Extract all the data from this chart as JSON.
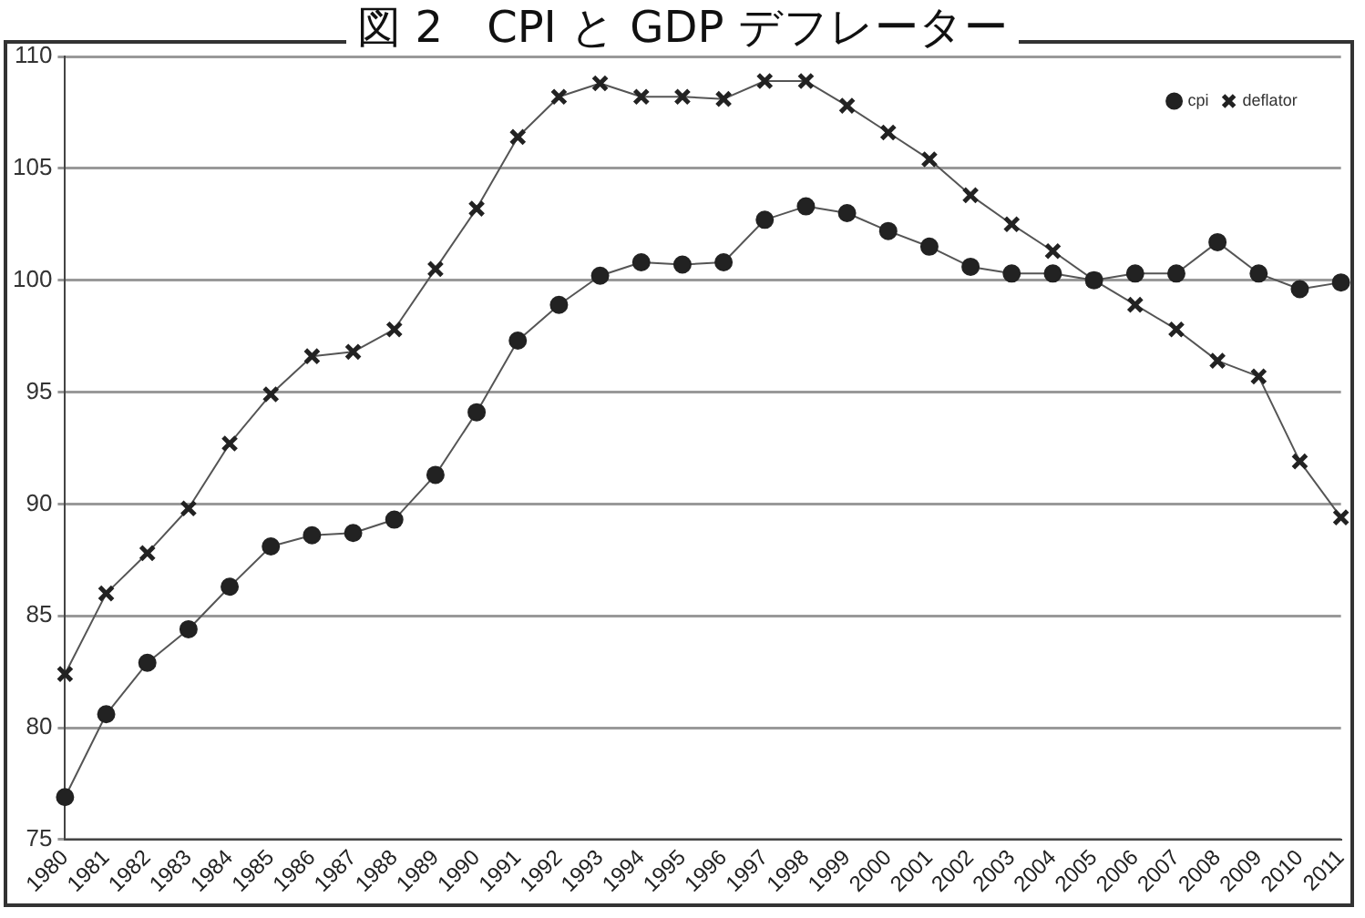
{
  "chart_data": {
    "type": "line",
    "title": "図 2　CPI と GDP デフレーター",
    "categories": [
      "1980",
      "1981",
      "1982",
      "1983",
      "1984",
      "1985",
      "1986",
      "1987",
      "1988",
      "1989",
      "1990",
      "1991",
      "1992",
      "1993",
      "1994",
      "1995",
      "1996",
      "1997",
      "1998",
      "1999",
      "2000",
      "2001",
      "2002",
      "2003",
      "2004",
      "2005",
      "2006",
      "2007",
      "2008",
      "2009",
      "2010",
      "2011"
    ],
    "series": [
      {
        "name": "cpi",
        "color": "#222222",
        "marker": "circle",
        "values": [
          76.9,
          80.6,
          82.9,
          84.4,
          86.3,
          88.1,
          88.6,
          88.7,
          89.3,
          91.3,
          94.1,
          97.3,
          98.9,
          100.2,
          100.8,
          100.7,
          100.8,
          102.7,
          103.3,
          103.0,
          102.2,
          101.5,
          100.6,
          100.3,
          100.3,
          100.0,
          100.3,
          100.3,
          101.7,
          100.3,
          99.6,
          99.9
        ]
      },
      {
        "name": "deflator",
        "color": "#222222",
        "marker": "cross",
        "values": [
          82.4,
          86.0,
          87.8,
          89.8,
          92.7,
          94.9,
          96.6,
          96.8,
          97.8,
          100.5,
          103.2,
          106.4,
          108.2,
          108.8,
          108.2,
          108.2,
          108.1,
          108.9,
          108.9,
          107.8,
          106.6,
          105.4,
          103.8,
          102.5,
          101.3,
          100.0,
          98.9,
          97.8,
          96.4,
          95.7,
          91.9,
          89.4
        ]
      }
    ],
    "ylim": [
      75,
      110
    ],
    "yticks": [
      75,
      80,
      85,
      90,
      95,
      100,
      105,
      110
    ],
    "grid": "y",
    "legend": "top right",
    "line_style": "solid"
  }
}
